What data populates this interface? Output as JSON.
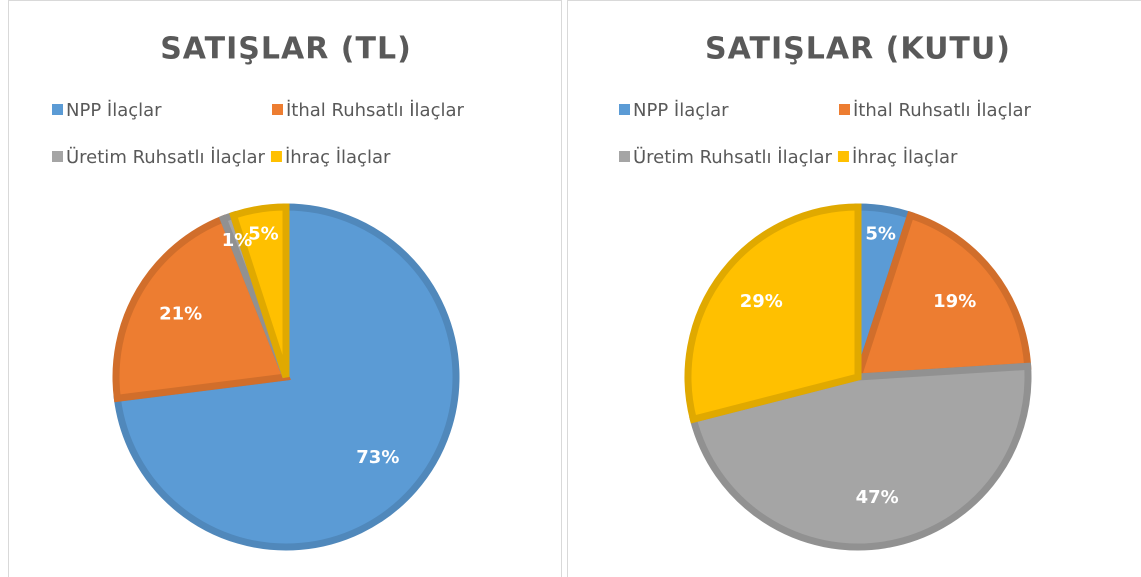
{
  "chart_data": [
    {
      "type": "pie",
      "title": "SATIŞLAR (TL)",
      "categories": [
        "NPP İlaçlar",
        "İthal Ruhsatlı İlaçlar",
        "Üretim Ruhsatlı İlaçlar",
        "İhraç İlaçlar"
      ],
      "values": [
        73,
        21,
        1,
        5
      ],
      "value_labels": [
        "73%",
        "21%",
        "1%",
        "5%"
      ],
      "colors": [
        "#5b9bd5",
        "#ed7d31",
        "#a5a5a5",
        "#ffc000"
      ]
    },
    {
      "type": "pie",
      "title": "SATIŞLAR (KUTU)",
      "categories": [
        "NPP İlaçlar",
        "İthal Ruhsatlı İlaçlar",
        "Üretim Ruhsatlı İlaçlar",
        "İhraç İlaçlar"
      ],
      "values": [
        5,
        19,
        47,
        29
      ],
      "value_labels": [
        "5%",
        "19%",
        "47%",
        "29%"
      ],
      "colors": [
        "#5b9bd5",
        "#ed7d31",
        "#a5a5a5",
        "#ffc000"
      ]
    }
  ]
}
